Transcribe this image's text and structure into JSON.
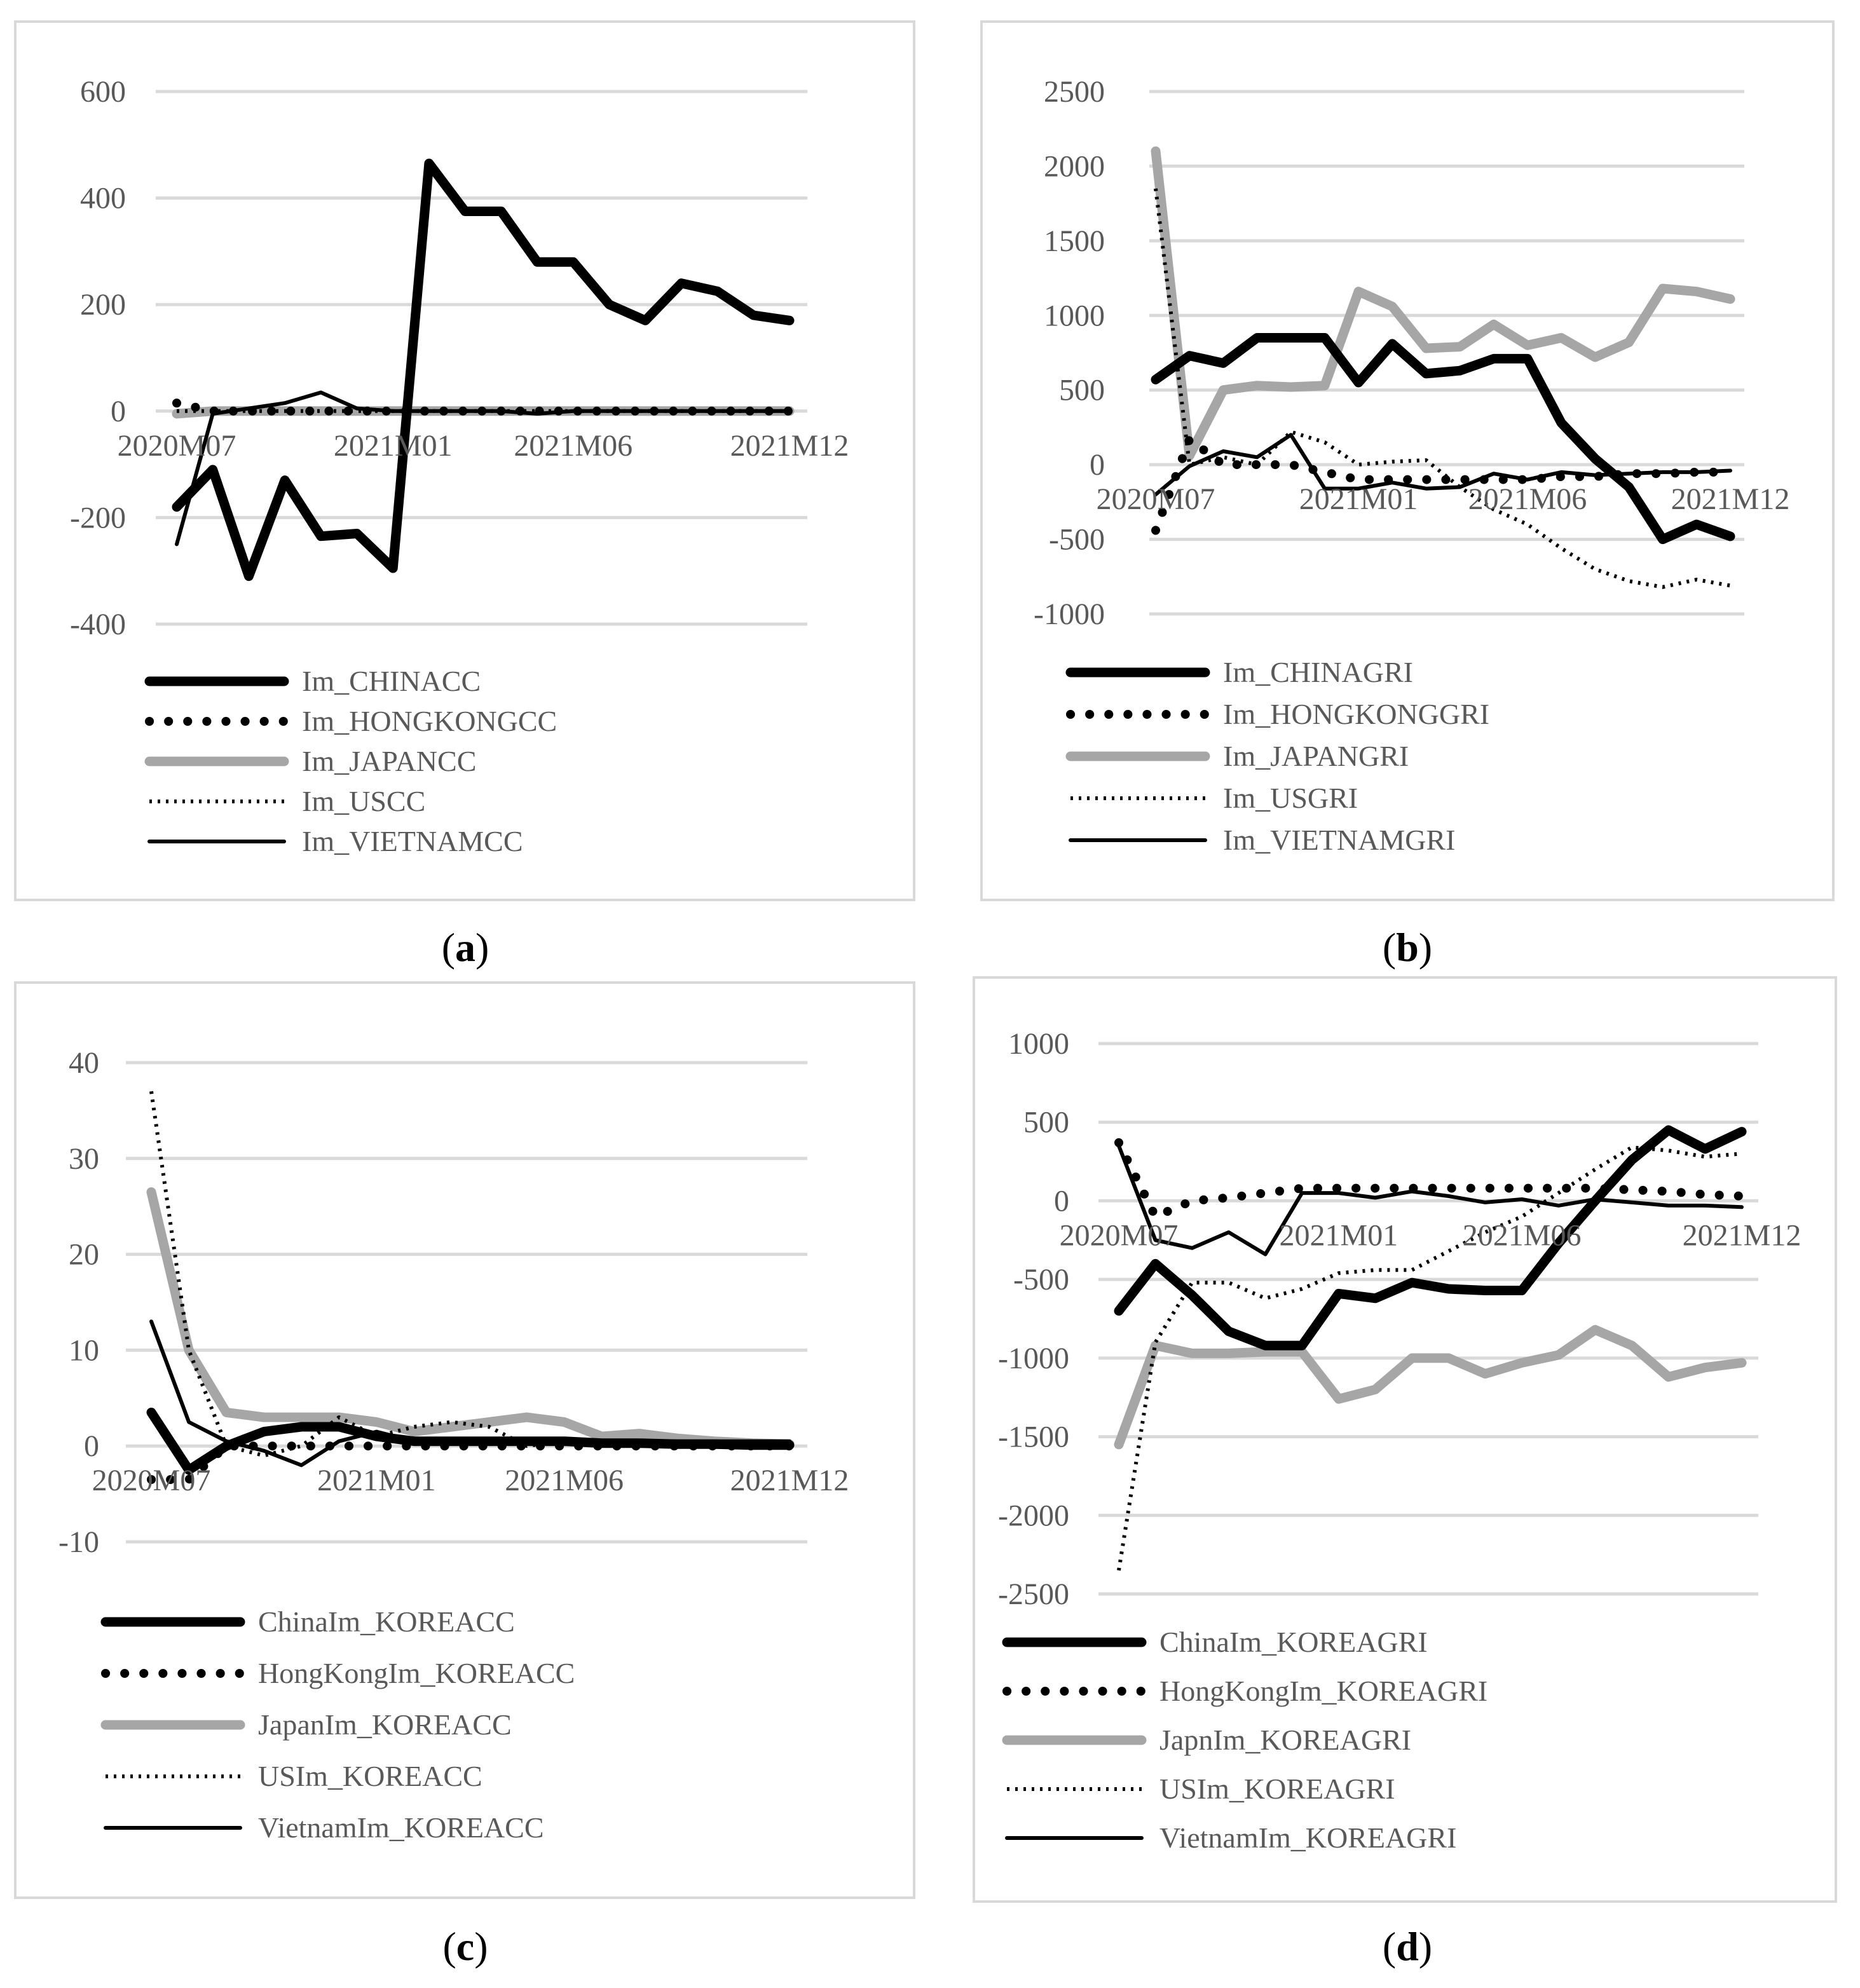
{
  "chart_data": [
    {
      "type": "line",
      "panel": "a",
      "caption_label": "a",
      "yticks": [
        600,
        400,
        200,
        0,
        -200,
        -400
      ],
      "ylim": [
        -400,
        600
      ],
      "x_labels": [
        {
          "index": 0,
          "text": "2020M07"
        },
        {
          "index": 6,
          "text": "2021M01"
        },
        {
          "index": 11,
          "text": "2021M06"
        },
        {
          "index": 17,
          "text": "2021M12"
        }
      ],
      "categories": [
        "2020M07",
        "2020M08",
        "2020M09",
        "2020M10",
        "2020M11",
        "2020M12",
        "2021M01",
        "2021M02",
        "2021M03",
        "2021M04",
        "2021M05",
        "2021M06",
        "2021M07",
        "2021M08",
        "2021M09",
        "2021M10",
        "2021M11",
        "2021M12"
      ],
      "series": [
        {
          "name": "Im_CHINACC",
          "style": "thick-black",
          "values": [
            -180,
            -110,
            -310,
            -130,
            -235,
            -230,
            -295,
            465,
            375,
            375,
            280,
            280,
            200,
            170,
            240,
            225,
            180,
            170
          ]
        },
        {
          "name": "Im_HONGKONGCC",
          "style": "dotted-bold",
          "values": [
            15,
            0,
            0,
            0,
            0,
            0,
            0,
            0,
            0,
            0,
            0,
            0,
            0,
            0,
            0,
            0,
            0,
            0
          ]
        },
        {
          "name": "Im_JAPANCC",
          "style": "thick-gray",
          "values": [
            -5,
            0,
            0,
            0,
            0,
            0,
            0,
            0,
            0,
            0,
            0,
            0,
            0,
            0,
            0,
            0,
            0,
            0
          ]
        },
        {
          "name": "Im_USCC",
          "style": "dotted-thin",
          "values": [
            0,
            0,
            0,
            0,
            0,
            0,
            0,
            0,
            0,
            0,
            0,
            0,
            0,
            0,
            0,
            0,
            0,
            0
          ]
        },
        {
          "name": "Im_VIETNAMCC",
          "style": "thin-black",
          "values": [
            -250,
            -5,
            5,
            15,
            35,
            5,
            0,
            0,
            0,
            0,
            -5,
            0,
            0,
            0,
            0,
            0,
            0,
            0
          ]
        }
      ]
    },
    {
      "type": "line",
      "panel": "b",
      "caption_label": "b",
      "yticks": [
        2500,
        2000,
        1500,
        1000,
        500,
        0,
        -500,
        -1000
      ],
      "ylim": [
        -1000,
        2500
      ],
      "x_labels": [
        {
          "index": 0,
          "text": "2020M07"
        },
        {
          "index": 6,
          "text": "2021M01"
        },
        {
          "index": 11,
          "text": "2021M06"
        },
        {
          "index": 17,
          "text": "2021M12"
        }
      ],
      "categories": [
        "2020M07",
        "2020M08",
        "2020M09",
        "2020M10",
        "2020M11",
        "2020M12",
        "2021M01",
        "2021M02",
        "2021M03",
        "2021M04",
        "2021M05",
        "2021M06",
        "2021M07",
        "2021M08",
        "2021M09",
        "2021M10",
        "2021M11",
        "2021M12"
      ],
      "series": [
        {
          "name": "Im_CHINAGRI",
          "style": "thick-black",
          "values": [
            570,
            730,
            680,
            850,
            850,
            850,
            550,
            810,
            610,
            630,
            710,
            710,
            280,
            40,
            -150,
            -500,
            -400,
            -480
          ]
        },
        {
          "name": "Im_HONGKONGGRI",
          "style": "dotted-bold",
          "values": [
            -440,
            170,
            0,
            0,
            0,
            -50,
            -100,
            -100,
            -100,
            -100,
            -100,
            -100,
            -80,
            -80,
            -60,
            -60,
            -50,
            -50
          ]
        },
        {
          "name": "Im_JAPANGRI",
          "style": "thick-gray",
          "values": [
            2100,
            60,
            500,
            530,
            520,
            530,
            1160,
            1060,
            780,
            790,
            940,
            800,
            850,
            720,
            820,
            1180,
            1160,
            1110
          ]
        },
        {
          "name": "Im_USGRI",
          "style": "dotted-thin",
          "values": [
            1850,
            0,
            50,
            0,
            220,
            150,
            0,
            20,
            30,
            -150,
            -300,
            -400,
            -560,
            -700,
            -780,
            -820,
            -770,
            -810
          ]
        },
        {
          "name": "Im_VIETNAMGRI",
          "style": "thin-black",
          "values": [
            -200,
            -10,
            90,
            50,
            200,
            -160,
            -160,
            -120,
            -160,
            -150,
            -60,
            -100,
            -50,
            -70,
            -60,
            -50,
            -50,
            -40
          ]
        }
      ]
    },
    {
      "type": "line",
      "panel": "c",
      "caption_label": "c",
      "yticks": [
        40,
        30,
        20,
        10,
        0,
        -10
      ],
      "ylim": [
        -10,
        40
      ],
      "x_labels": [
        {
          "index": 0,
          "text": "2020M07"
        },
        {
          "index": 6,
          "text": "2021M01"
        },
        {
          "index": 11,
          "text": "2021M06"
        },
        {
          "index": 17,
          "text": "2021M12"
        }
      ],
      "categories": [
        "2020M07",
        "2020M08",
        "2020M09",
        "2020M10",
        "2020M11",
        "2020M12",
        "2021M01",
        "2021M02",
        "2021M03",
        "2021M04",
        "2021M05",
        "2021M06",
        "2021M07",
        "2021M08",
        "2021M09",
        "2021M10",
        "2021M11",
        "2021M12"
      ],
      "series": [
        {
          "name": "ChinaIm_KOREACC",
          "style": "thick-black",
          "values": [
            3.5,
            -2.5,
            0,
            1.5,
            2,
            2,
            1,
            0.5,
            0.5,
            0.5,
            0.5,
            0.5,
            0.3,
            0.3,
            0.2,
            0.2,
            0.1,
            0.1
          ]
        },
        {
          "name": "HongKongIm_KOREACC",
          "style": "dotted-bold",
          "values": [
            -3.5,
            -3.5,
            0,
            0,
            0,
            0,
            0,
            0,
            0,
            0,
            0,
            0,
            0,
            0,
            0,
            0,
            0,
            0
          ]
        },
        {
          "name": "JapanIm_KOREACC",
          "style": "thick-gray",
          "values": [
            26.5,
            10,
            3.5,
            3,
            3,
            3,
            2.5,
            1.5,
            2,
            2.5,
            3,
            2.5,
            1,
            1.3,
            0.8,
            0.5,
            0.3,
            0.2
          ]
        },
        {
          "name": "USIm_KOREACC",
          "style": "dotted-thin",
          "values": [
            37,
            10,
            0,
            -1,
            0,
            3,
            1,
            2,
            2.5,
            2,
            0,
            0.5,
            0,
            0.5,
            0,
            0,
            0,
            0
          ]
        },
        {
          "name": "VietnamIm_KOREACC",
          "style": "thin-black",
          "values": [
            13,
            2.5,
            0.5,
            -0.5,
            -2,
            0.5,
            1.5,
            0.5,
            0.5,
            0.5,
            0.5,
            0.5,
            0.5,
            0.5,
            0.5,
            0.5,
            0.5,
            0.5
          ]
        }
      ]
    },
    {
      "type": "line",
      "panel": "d",
      "caption_label": "d",
      "yticks": [
        1000,
        500,
        0,
        -500,
        -1000,
        -1500,
        -2000,
        -2500
      ],
      "ylim": [
        -2500,
        1000
      ],
      "x_labels": [
        {
          "index": 0,
          "text": "2020M07"
        },
        {
          "index": 6,
          "text": "2021M01"
        },
        {
          "index": 11,
          "text": "2021M06"
        },
        {
          "index": 17,
          "text": "2021M12"
        }
      ],
      "categories": [
        "2020M07",
        "2020M08",
        "2020M09",
        "2020M10",
        "2020M11",
        "2020M12",
        "2021M01",
        "2021M02",
        "2021M03",
        "2021M04",
        "2021M05",
        "2021M06",
        "2021M07",
        "2021M08",
        "2021M09",
        "2021M10",
        "2021M11",
        "2021M12"
      ],
      "series": [
        {
          "name": "ChinaIm_KOREAGRI",
          "style": "thick-black",
          "values": [
            -700,
            -400,
            -600,
            -830,
            -920,
            -920,
            -590,
            -620,
            -520,
            -560,
            -570,
            -570,
            -270,
            0,
            260,
            450,
            330,
            440
          ]
        },
        {
          "name": "HongKongIm_KOREAGRI",
          "style": "dotted-bold",
          "values": [
            370,
            -100,
            0,
            20,
            50,
            80,
            80,
            80,
            80,
            80,
            80,
            80,
            80,
            80,
            70,
            60,
            40,
            30
          ]
        },
        {
          "name": "JapnIm_KOREAGRI",
          "style": "thick-gray",
          "values": [
            -1550,
            -920,
            -970,
            -970,
            -960,
            -960,
            -1260,
            -1200,
            -1000,
            -1000,
            -1100,
            -1030,
            -980,
            -820,
            -920,
            -1120,
            -1060,
            -1030
          ]
        },
        {
          "name": "USIm_KOREAGRI",
          "style": "dotted-thin",
          "values": [
            -2350,
            -900,
            -520,
            -520,
            -620,
            -560,
            -460,
            -440,
            -440,
            -320,
            -200,
            -100,
            50,
            200,
            340,
            320,
            280,
            300
          ]
        },
        {
          "name": "VietnamIm_KOREAGRI",
          "style": "thin-black",
          "values": [
            350,
            -250,
            -300,
            -200,
            -340,
            50,
            50,
            20,
            60,
            30,
            -10,
            10,
            -30,
            10,
            -10,
            -30,
            -30,
            -40
          ]
        }
      ]
    }
  ]
}
